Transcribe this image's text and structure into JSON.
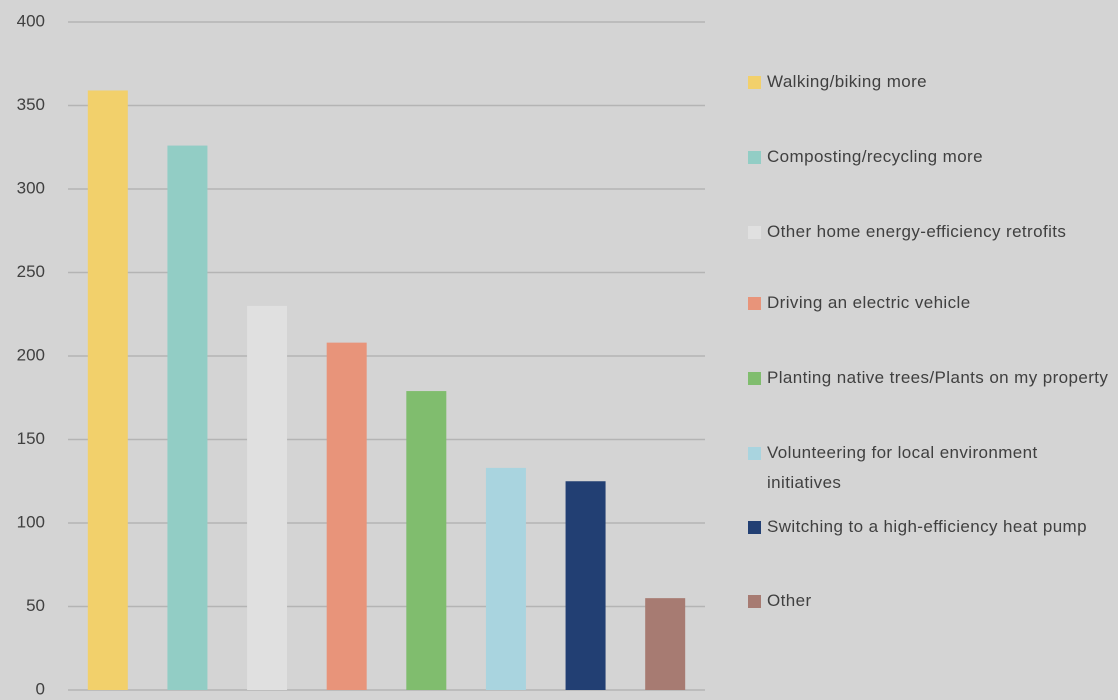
{
  "chart_data": {
    "type": "bar",
    "series": [
      {
        "name": "Walking/biking more",
        "color": "#f2d06b",
        "values": [
          359
        ]
      },
      {
        "name": "Composting/recycling more",
        "color": "#92cdc5",
        "values": [
          326
        ]
      },
      {
        "name": "Other home energy-efficiency retrofits",
        "color": "#e0e0e0",
        "values": [
          230
        ]
      },
      {
        "name": "Driving an electric vehicle",
        "color": "#e8947a",
        "values": [
          208
        ]
      },
      {
        "name": "Planting native trees/Plants on my property",
        "color": "#80bd6e",
        "values": [
          179
        ]
      },
      {
        "name": "Volunteering for local environment initiatives",
        "color": "#a9d4df",
        "values": [
          133
        ]
      },
      {
        "name": "Switching to a high-efficiency heat pump",
        "color": "#223f73",
        "values": [
          125
        ]
      },
      {
        "name": "Other",
        "color": "#a77b72",
        "values": [
          55
        ]
      }
    ],
    "ylim": [
      0,
      400
    ],
    "yticks": [
      0,
      50,
      100,
      150,
      200,
      250,
      300,
      350,
      400
    ],
    "grid": true,
    "legend": "right"
  }
}
